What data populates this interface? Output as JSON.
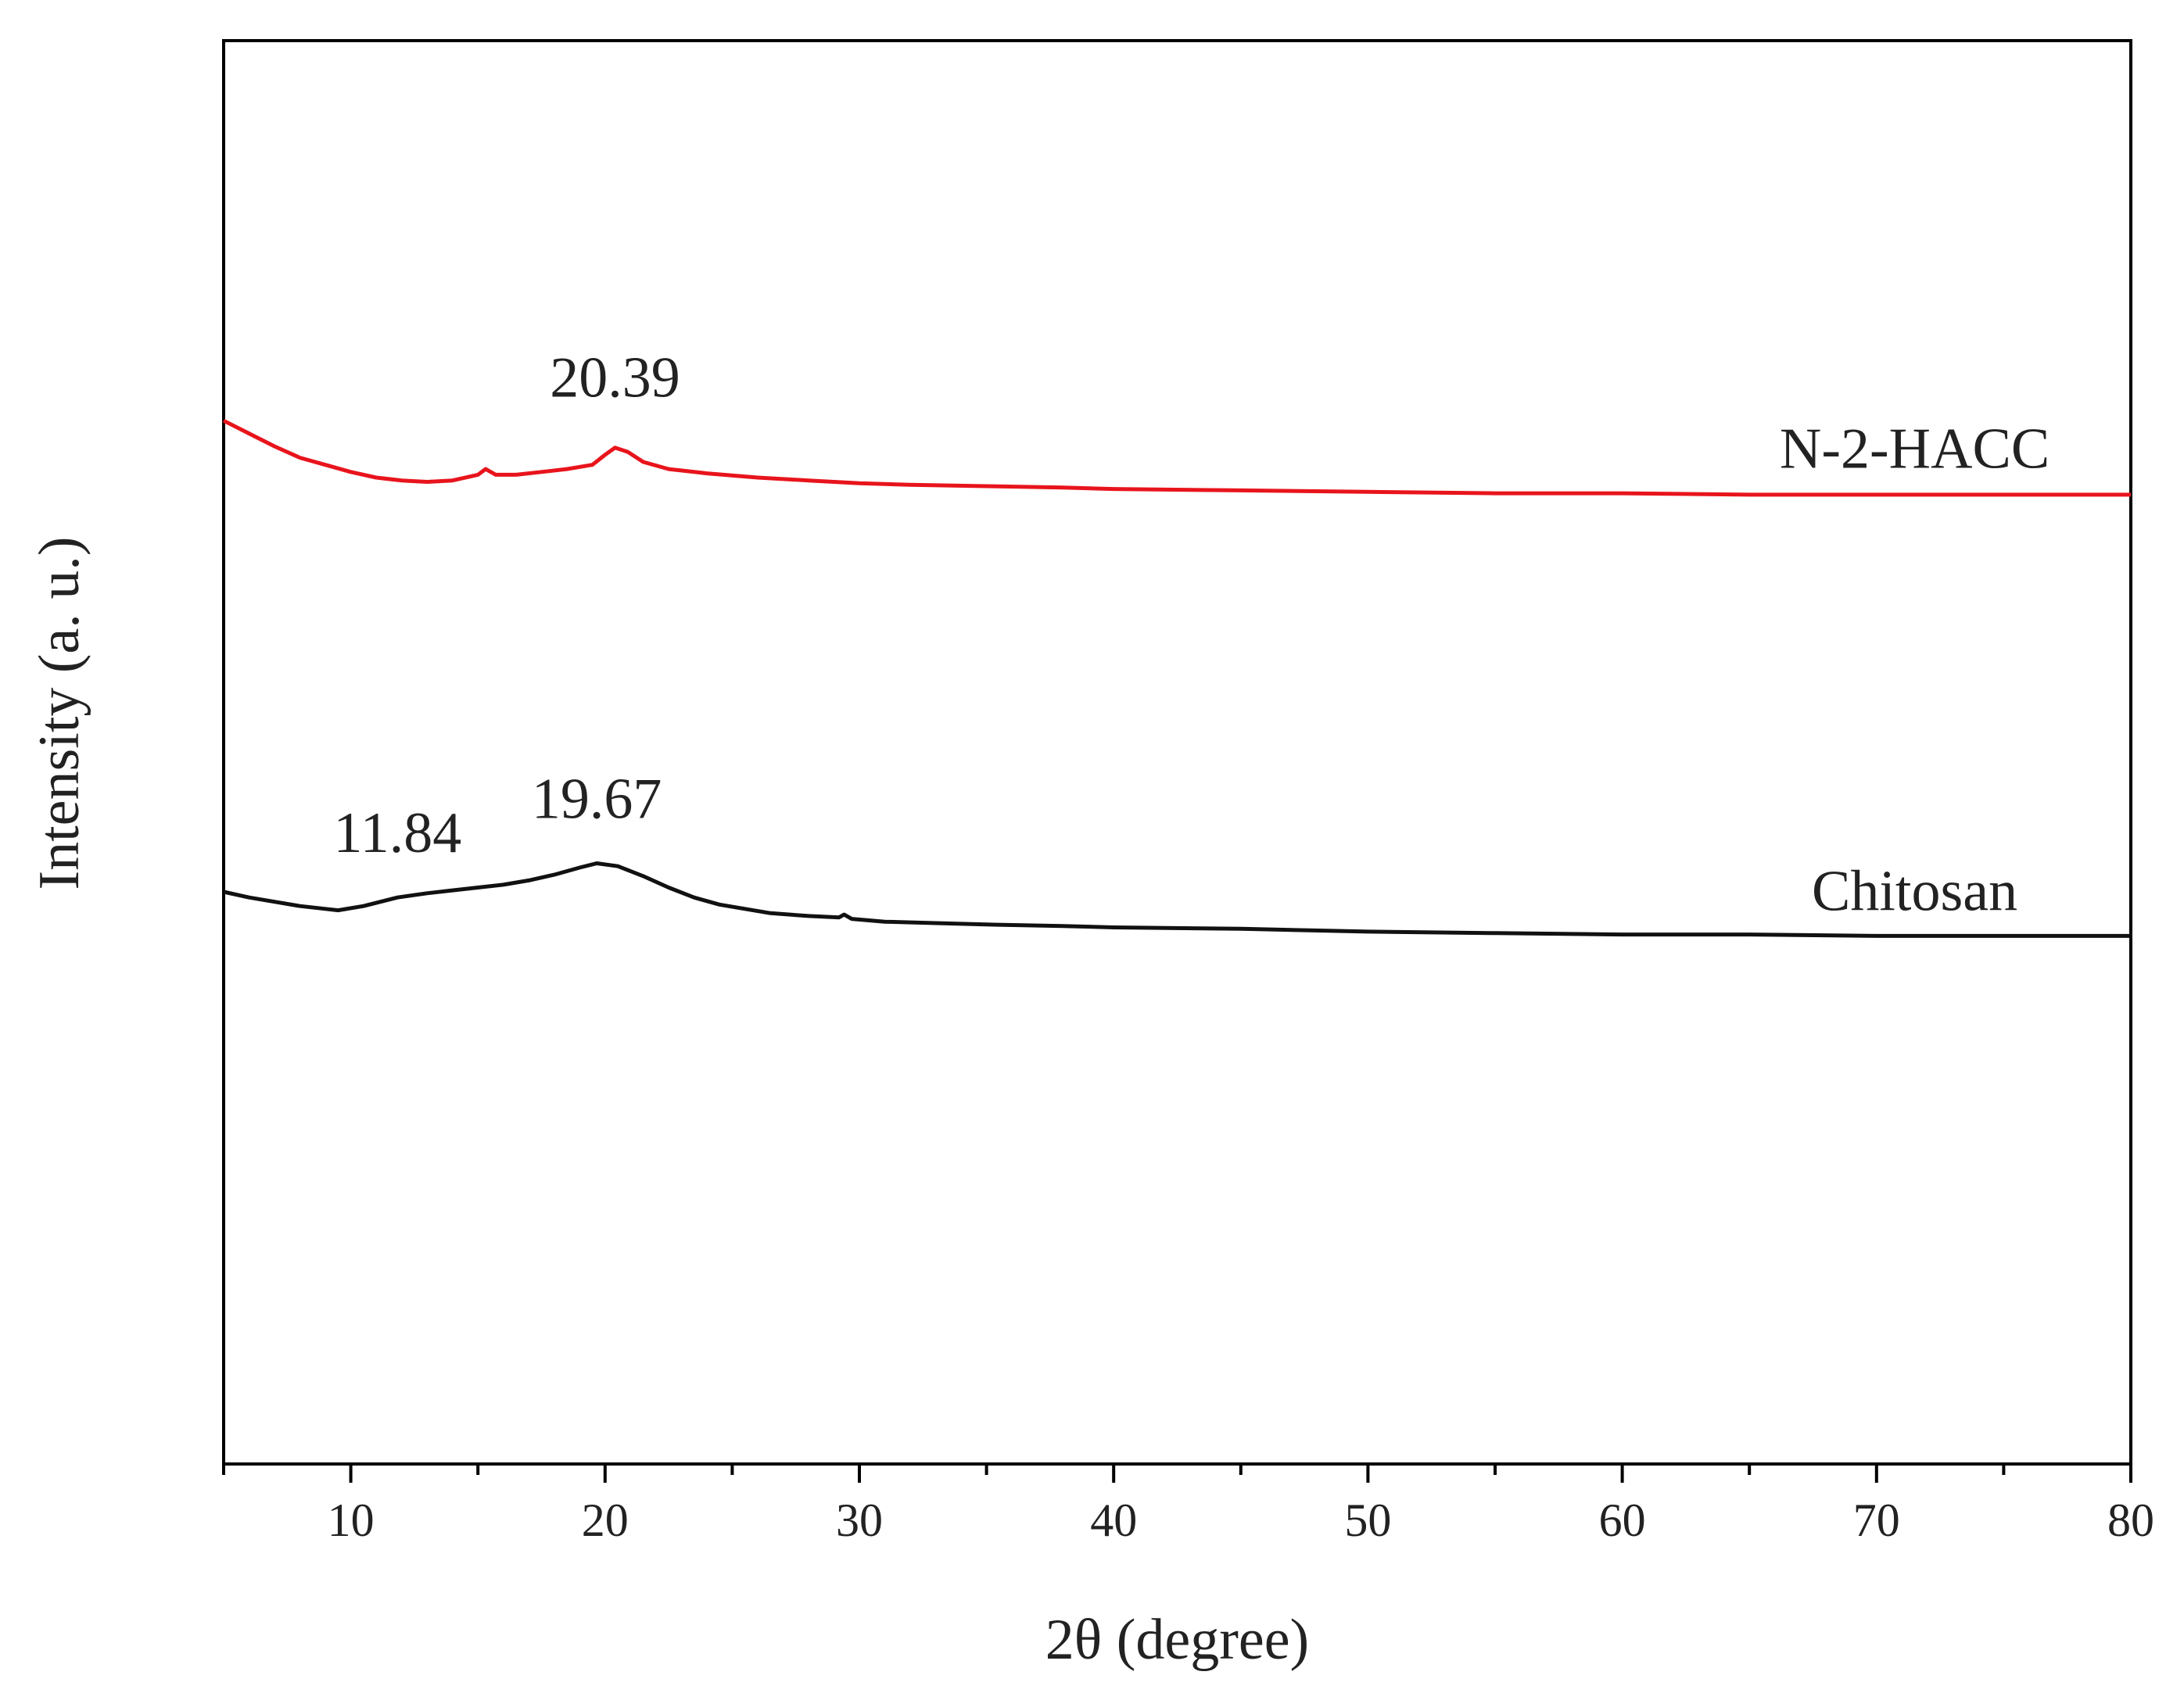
{
  "chart_data": {
    "type": "line",
    "title": "",
    "xlabel": "2θ (degree)",
    "ylabel": "Intensity (a. u.)",
    "xlim": [
      5,
      80
    ],
    "ylim": [
      0,
      10
    ],
    "xticks": [
      10,
      20,
      30,
      40,
      50,
      60,
      70,
      80
    ],
    "y_ticks_shown": false,
    "grid": false,
    "series": [
      {
        "name": "N-2-HACC",
        "color": "#e8141c",
        "points": [
          [
            5,
            7.33
          ],
          [
            6,
            7.24
          ],
          [
            7,
            7.15
          ],
          [
            8,
            7.07
          ],
          [
            9,
            7.02
          ],
          [
            10,
            6.97
          ],
          [
            11,
            6.93
          ],
          [
            12,
            6.91
          ],
          [
            13,
            6.9
          ],
          [
            14,
            6.91
          ],
          [
            15,
            6.95
          ],
          [
            15.3,
            6.99
          ],
          [
            15.7,
            6.95
          ],
          [
            16.5,
            6.95
          ],
          [
            17.5,
            6.97
          ],
          [
            18.5,
            6.99
          ],
          [
            19.5,
            7.02
          ],
          [
            20.0,
            7.09
          ],
          [
            20.39,
            7.14
          ],
          [
            20.9,
            7.11
          ],
          [
            21.5,
            7.04
          ],
          [
            22.5,
            6.99
          ],
          [
            24,
            6.96
          ],
          [
            26,
            6.93
          ],
          [
            28,
            6.91
          ],
          [
            30,
            6.89
          ],
          [
            32,
            6.88
          ],
          [
            35,
            6.87
          ],
          [
            38,
            6.86
          ],
          [
            40,
            6.85
          ],
          [
            45,
            6.84
          ],
          [
            50,
            6.83
          ],
          [
            55,
            6.82
          ],
          [
            60,
            6.82
          ],
          [
            65,
            6.81
          ],
          [
            70,
            6.81
          ],
          [
            75,
            6.81
          ],
          [
            80,
            6.81
          ]
        ]
      },
      {
        "name": "Chitosan",
        "color": "#111111",
        "points": [
          [
            5,
            4.02
          ],
          [
            6,
            3.98
          ],
          [
            7,
            3.95
          ],
          [
            8,
            3.92
          ],
          [
            9,
            3.9
          ],
          [
            9.5,
            3.89
          ],
          [
            10.5,
            3.92
          ],
          [
            11.84,
            3.98
          ],
          [
            13,
            4.01
          ],
          [
            14,
            4.03
          ],
          [
            15,
            4.05
          ],
          [
            16,
            4.07
          ],
          [
            17,
            4.1
          ],
          [
            18,
            4.14
          ],
          [
            19,
            4.19
          ],
          [
            19.67,
            4.22
          ],
          [
            20.5,
            4.2
          ],
          [
            21.5,
            4.13
          ],
          [
            22.5,
            4.05
          ],
          [
            23.5,
            3.98
          ],
          [
            24.5,
            3.93
          ],
          [
            25.5,
            3.9
          ],
          [
            26.5,
            3.87
          ],
          [
            28,
            3.85
          ],
          [
            29.2,
            3.84
          ],
          [
            29.4,
            3.86
          ],
          [
            29.7,
            3.83
          ],
          [
            31,
            3.81
          ],
          [
            33,
            3.8
          ],
          [
            35,
            3.79
          ],
          [
            38,
            3.78
          ],
          [
            40,
            3.77
          ],
          [
            45,
            3.76
          ],
          [
            50,
            3.74
          ],
          [
            55,
            3.73
          ],
          [
            60,
            3.72
          ],
          [
            65,
            3.72
          ],
          [
            70,
            3.71
          ],
          [
            75,
            3.71
          ],
          [
            80,
            3.71
          ]
        ]
      }
    ],
    "series_labels": [
      {
        "text": "N-2-HACC",
        "x": 71.5,
        "y": 7.0
      },
      {
        "text": "Chitosan",
        "x": 71.5,
        "y": 3.89
      }
    ],
    "annotations": [
      {
        "text": "20.39",
        "x": 20.39,
        "y": 7.5
      },
      {
        "text": "11.84",
        "x": 11.84,
        "y": 4.3
      },
      {
        "text": "19.67",
        "x": 19.67,
        "y": 4.54
      }
    ]
  }
}
